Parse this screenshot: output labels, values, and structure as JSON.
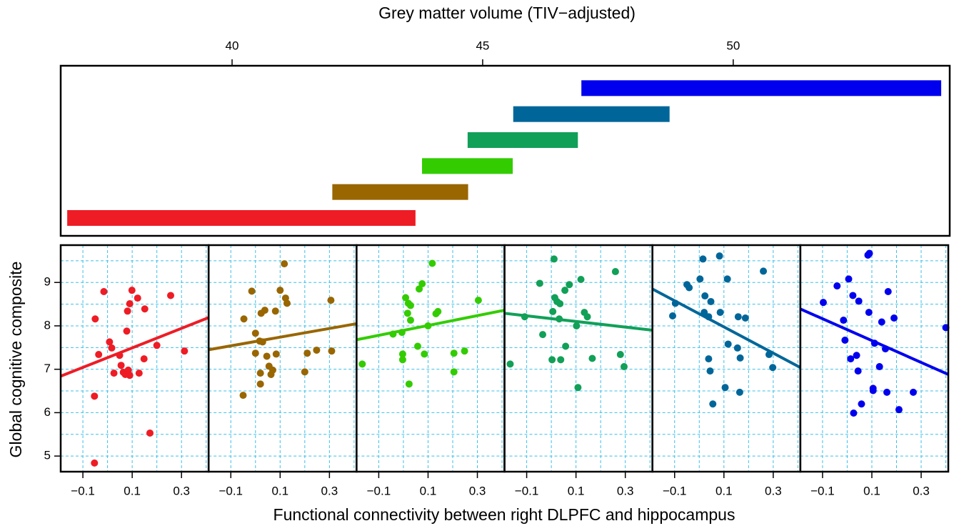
{
  "chart_data": [
    {
      "type": "interval",
      "title": "Grey matter volume (TIV−adjusted)",
      "xlim": [
        36.58,
        54.32
      ],
      "xticks": [
        40,
        45,
        50
      ],
      "bars": [
        {
          "color": "#ee1c25",
          "range": [
            36.71,
            43.66
          ]
        },
        {
          "color": "#996600",
          "range": [
            42.0,
            44.71
          ]
        },
        {
          "color": "#33cc00",
          "range": [
            43.79,
            45.6
          ]
        },
        {
          "color": "#11a058",
          "range": [
            44.7,
            46.9
          ]
        },
        {
          "color": "#006699",
          "range": [
            45.61,
            48.73
          ]
        },
        {
          "color": "#0000ee",
          "range": [
            46.97,
            54.15
          ]
        }
      ]
    },
    {
      "type": "scatter",
      "xlabel": "Functional connectivity between right DLPFC and hippocampus",
      "ylabel": "Global cognitive composite",
      "xlim": [
        -0.19,
        0.41
      ],
      "ylim": [
        4.64,
        9.86
      ],
      "xticks": [
        {
          "value": -0.1,
          "label": "−0.1"
        },
        0.1,
        0.3
      ],
      "yticks": [
        5,
        6,
        7,
        8,
        9
      ],
      "xgrid": [
        -0.1,
        0,
        0.1,
        0.2,
        0.3,
        0.4
      ],
      "ygrid": [
        5,
        5.5,
        6,
        6.5,
        7,
        7.5,
        8,
        8.5,
        9,
        9.5
      ],
      "panels": [
        {
          "color": "#ee1c25",
          "x": [
            -0.015,
            -0.05,
            -0.036,
            -0.053,
            -0.053,
            0.008,
            0.017,
            0.026,
            0.049,
            0.055,
            0.064,
            0.072,
            0.078,
            0.081,
            0.084,
            0.09,
            0.09,
            0.099,
            0.122,
            0.128,
            0.148,
            0.151,
            0.172,
            0.2,
            0.256,
            0.312
          ],
          "y": [
            8.79,
            8.16,
            7.34,
            6.38,
            4.84,
            7.63,
            7.49,
            6.91,
            7.32,
            7.09,
            6.93,
            6.88,
            7.88,
            8.34,
            6.98,
            6.86,
            8.51,
            8.82,
            8.64,
            6.91,
            7.24,
            8.39,
            5.53,
            7.55,
            8.7,
            7.42
          ],
          "fit": {
            "x": [
              -0.19,
              0.41
            ],
            "y": [
              6.84,
              8.19
            ]
          }
        },
        {
          "color": "#996600",
          "x": [
            -0.05,
            -0.015,
            -0.047,
            0.0,
            0.0,
            0.017,
            0.023,
            0.02,
            0.02,
            0.029,
            0.038,
            0.046,
            0.055,
            0.063,
            0.07,
            0.081,
            0.084,
            0.1,
            0.117,
            0.122,
            0.128,
            0.2,
            0.21,
            0.248,
            0.306,
            0.309
          ],
          "y": [
            6.4,
            8.8,
            8.16,
            7.83,
            7.37,
            7.65,
            8.29,
            6.91,
            6.66,
            7.63,
            8.36,
            7.3,
            7.07,
            6.88,
            6.98,
            8.34,
            7.35,
            8.82,
            9.43,
            8.64,
            8.52,
            6.94,
            7.37,
            7.44,
            8.59,
            7.42
          ],
          "fit": {
            "x": [
              -0.19,
              0.41
            ],
            "y": [
              7.45,
              8.05
            ]
          }
        },
        {
          "color": "#33cc00",
          "x": [
            -0.167,
            -0.042,
            -0.006,
            -0.003,
            -0.003,
            0.009,
            0.017,
            0.02,
            0.023,
            0.029,
            0.029,
            0.058,
            0.064,
            0.076,
            0.085,
            0.1,
            0.117,
            0.132,
            0.14,
            0.205,
            0.205,
            0.248,
            0.304
          ],
          "y": [
            7.12,
            7.81,
            7.85,
            7.35,
            7.22,
            8.65,
            8.29,
            8.52,
            6.66,
            8.13,
            8.47,
            7.53,
            8.85,
            8.97,
            7.35,
            8.0,
            9.44,
            8.28,
            8.33,
            7.37,
            6.94,
            7.42,
            8.59
          ],
          "fit": {
            "x": [
              -0.19,
              0.41
            ],
            "y": [
              7.68,
              8.36
            ]
          }
        },
        {
          "color": "#11a058",
          "x": [
            -0.167,
            -0.108,
            -0.047,
            -0.035,
            0.003,
            0.006,
            0.011,
            0.014,
            0.023,
            0.032,
            0.035,
            0.038,
            0.055,
            0.058,
            0.073,
            0.102,
            0.108,
            0.12,
            0.134,
            0.146,
            0.166,
            0.26,
            0.28,
            0.295
          ],
          "y": [
            7.12,
            8.21,
            8.98,
            7.8,
            7.22,
            8.33,
            9.54,
            8.65,
            8.56,
            8.16,
            8.51,
            7.22,
            8.82,
            7.53,
            8.95,
            8.0,
            6.58,
            9.07,
            8.31,
            8.21,
            7.25,
            9.25,
            7.34,
            7.06
          ],
          "fit": {
            "x": [
              -0.19,
              0.41
            ],
            "y": [
              8.29,
              7.9
            ]
          }
        },
        {
          "color": "#006699",
          "x": [
            -0.108,
            -0.097,
            -0.05,
            -0.041,
            0.003,
            0.015,
            0.02,
            0.023,
            0.038,
            0.038,
            0.044,
            0.047,
            0.055,
            0.082,
            0.085,
            0.105,
            0.114,
            0.117,
            0.155,
            0.158,
            0.164,
            0.166,
            0.187,
            0.26,
            0.283,
            0.298
          ],
          "y": [
            8.23,
            8.52,
            8.95,
            8.88,
            9.08,
            9.54,
            8.31,
            8.69,
            7.24,
            8.21,
            6.96,
            8.56,
            6.2,
            9.61,
            8.31,
            6.58,
            9.08,
            7.58,
            7.49,
            8.21,
            6.47,
            7.26,
            8.18,
            9.26,
            7.34,
            7.04
          ],
          "fit": {
            "x": [
              -0.19,
              0.41
            ],
            "y": [
              8.85,
              7.04
            ]
          }
        },
        {
          "color": "#0000ee",
          "x": [
            -0.097,
            -0.041,
            -0.015,
            -0.009,
            0.006,
            0.014,
            0.023,
            0.026,
            0.038,
            0.044,
            0.047,
            0.058,
            0.084,
            0.09,
            0.088,
            0.105,
            0.105,
            0.111,
            0.131,
            0.14,
            0.155,
            0.161,
            0.166,
            0.19,
            0.21,
            0.268,
            0.4
          ],
          "y": [
            8.54,
            8.92,
            8.13,
            7.67,
            9.08,
            7.24,
            8.7,
            5.99,
            7.32,
            6.96,
            8.57,
            6.2,
            9.63,
            9.67,
            8.31,
            6.56,
            6.51,
            7.6,
            7.06,
            8.09,
            7.47,
            6.47,
            8.79,
            8.18,
            6.07,
            6.47,
            7.96
          ],
          "fit": {
            "x": [
              -0.19,
              0.41
            ],
            "y": [
              8.39,
              6.88
            ]
          }
        }
      ]
    }
  ]
}
